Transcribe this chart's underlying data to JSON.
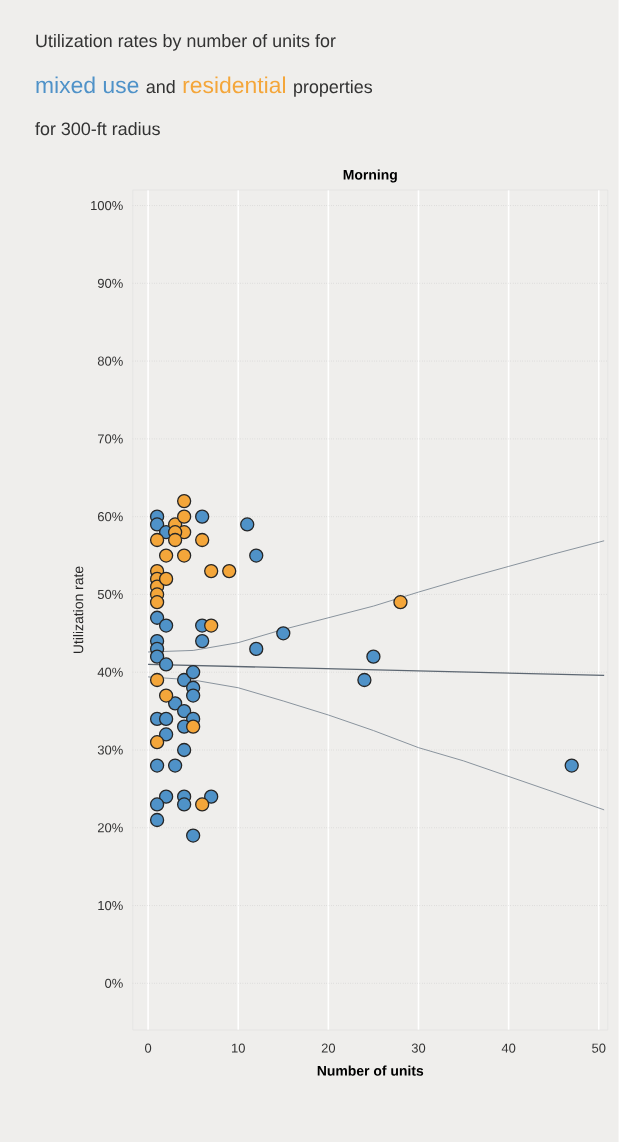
{
  "chart_data": {
    "type": "scatter",
    "title": "Utilization rates by number of units for",
    "subtitle": "Morning",
    "annotations": [
      "and",
      "properties",
      "for 300-ft radius"
    ],
    "xlabel": "Number of units",
    "ylabel": "Utilization rate",
    "xlim": [
      -1.7,
      51
    ],
    "ylim": [
      -6,
      102
    ],
    "xticks": [
      0,
      10,
      20,
      30,
      40,
      50
    ],
    "yticks": [
      {
        "value": 0,
        "label": "0%"
      },
      {
        "value": 10,
        "label": "10%"
      },
      {
        "value": 20,
        "label": "20%"
      },
      {
        "value": 30,
        "label": "30%"
      },
      {
        "value": 40,
        "label": "40%"
      },
      {
        "value": 50,
        "label": "50%"
      },
      {
        "value": 60,
        "label": "60%"
      },
      {
        "value": 70,
        "label": "70%"
      },
      {
        "value": 80,
        "label": "80%"
      },
      {
        "value": 90,
        "label": "90%"
      },
      {
        "value": 100,
        "label": "100%"
      }
    ],
    "grid": true,
    "marker": "circle",
    "series": [
      {
        "name": "mixed use",
        "color": "#4f92c8",
        "x": [
          1,
          6,
          11,
          1,
          2,
          12,
          1,
          2,
          6,
          6,
          1,
          1,
          15,
          12,
          25,
          24,
          47,
          1,
          2,
          4,
          5,
          5,
          5,
          3,
          4,
          1,
          5,
          2,
          4,
          2,
          4,
          1,
          3,
          2,
          4,
          1,
          4,
          7,
          1,
          5
        ],
        "values": [
          60,
          60,
          59,
          59,
          58,
          55,
          47,
          46,
          46,
          44,
          44,
          43,
          45,
          43,
          42,
          39,
          28,
          42,
          41,
          39,
          40,
          38,
          37,
          36,
          35,
          34,
          34,
          34,
          33,
          32,
          30,
          28,
          28,
          24,
          24,
          23,
          23,
          24,
          21,
          19
        ]
      },
      {
        "name": "residential",
        "color": "#f4a63a",
        "x": [
          4,
          3,
          4,
          4,
          3,
          1,
          3,
          6,
          2,
          4,
          7,
          9,
          1,
          1,
          1,
          1,
          1,
          2,
          7,
          28,
          1,
          2,
          5,
          1,
          6
        ],
        "values": [
          62,
          59,
          60,
          58,
          58,
          57,
          57,
          57,
          55,
          55,
          53,
          53,
          53,
          52,
          51,
          50,
          49,
          52,
          46,
          49,
          39,
          37,
          33,
          31,
          23
        ]
      },
      {
        "type": "line",
        "marker": "none",
        "color": "#5d6772",
        "x": [
          0,
          50.6
        ],
        "values": [
          41,
          39.6
        ]
      },
      {
        "type": "line",
        "marker": "none",
        "color": "#7d8894",
        "x": [
          0,
          5,
          10,
          15,
          20,
          25,
          30,
          35,
          40,
          45,
          50.6
        ],
        "values": [
          42.6,
          42.8,
          43.8,
          45.5,
          47,
          48.5,
          50.3,
          52,
          53.6,
          55.2,
          56.9
        ]
      },
      {
        "type": "line",
        "marker": "none",
        "color": "#7d8894",
        "x": [
          0,
          5,
          10,
          15,
          20,
          25,
          30,
          35,
          40,
          45,
          50.6
        ],
        "values": [
          39.4,
          39,
          38,
          36.3,
          34.5,
          32.5,
          30.3,
          28.6,
          26.6,
          24.6,
          22.3
        ]
      }
    ]
  }
}
